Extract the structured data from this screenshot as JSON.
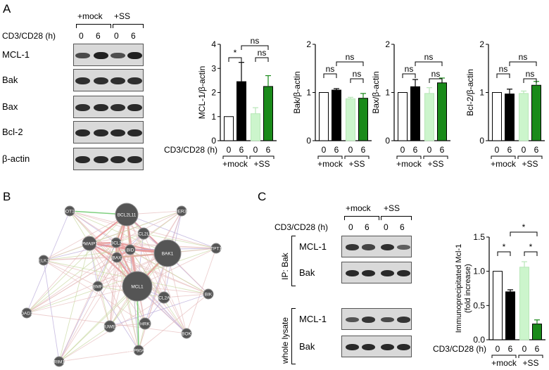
{
  "panels": {
    "a": "A",
    "b": "B",
    "c": "C"
  },
  "panel_a": {
    "groups": [
      "+mock",
      "+SS"
    ],
    "time_label": "CD3/CD28 (h)",
    "times": [
      "0",
      "6",
      "0",
      "6"
    ],
    "blots": [
      {
        "name": "MCL-1",
        "intensity": [
          0.55,
          0.95,
          0.5,
          0.95
        ]
      },
      {
        "name": "Bak",
        "intensity": [
          0.8,
          0.8,
          0.8,
          0.8
        ]
      },
      {
        "name": "Bax",
        "intensity": [
          0.8,
          0.85,
          0.8,
          0.85
        ]
      },
      {
        "name": "Bcl-2",
        "intensity": [
          0.85,
          0.85,
          0.85,
          0.85
        ]
      },
      {
        "name": "β-actin",
        "intensity": [
          0.85,
          0.85,
          0.85,
          0.85
        ]
      }
    ]
  },
  "panel_b": {
    "nodes": [
      {
        "label": "BOT1L"
      },
      {
        "label": "BCL2L11"
      },
      {
        "label": "IER3"
      },
      {
        "label": "BCL2L1"
      },
      {
        "label": "PMAIP1"
      },
      {
        "label": "BCL2"
      },
      {
        "label": "BID"
      },
      {
        "label": "BAX"
      },
      {
        "label": "BAK1"
      },
      {
        "label": "TPT1"
      },
      {
        "label": "ELK1"
      },
      {
        "label": "BMF"
      },
      {
        "label": "MCL1"
      },
      {
        "label": "BCL2A1"
      },
      {
        "label": "BIK"
      },
      {
        "label": "DAD1"
      },
      {
        "label": "HUWE1"
      },
      {
        "label": "HRK"
      },
      {
        "label": "BOK"
      },
      {
        "label": "HSP90AA1"
      },
      {
        "label": "TRIM17"
      }
    ]
  },
  "panel_c": {
    "groups": [
      "+mock",
      "+SS"
    ],
    "time_label": "CD3/CD28 (h)",
    "times": [
      "0",
      "6",
      "0",
      "6"
    ],
    "ip_label": "IP: Bak",
    "lysate_label": "whole lysate",
    "ip_blots": [
      {
        "name": "MCL-1",
        "intensity": [
          0.75,
          0.6,
          0.8,
          0.35
        ]
      },
      {
        "name": "Bak",
        "intensity": [
          0.85,
          0.85,
          0.85,
          0.85
        ]
      }
    ],
    "lysate_blots": [
      {
        "name": "MCL-1",
        "intensity": [
          0.45,
          0.75,
          0.55,
          0.75
        ]
      },
      {
        "name": "Bak",
        "intensity": [
          0.85,
          0.85,
          0.85,
          0.85
        ]
      }
    ]
  },
  "chart_data": [
    {
      "type": "bar",
      "ylabel": "MCL-1/β-actin",
      "categories": [
        "0",
        "6",
        "0",
        "6"
      ],
      "groups": [
        "+mock",
        "+SS"
      ],
      "xlabel": "CD3/CD28 (h)",
      "values": [
        1.0,
        2.45,
        1.12,
        2.25
      ],
      "errors": [
        0.0,
        0.8,
        0.25,
        0.45
      ],
      "ylim": [
        0,
        4
      ],
      "yticks": [
        "0",
        "1",
        "2",
        "3",
        "4"
      ],
      "fills": [
        "#ffffff",
        "#000000",
        "#ccf5cc",
        "#1a8a1a"
      ],
      "annotations": [
        "ns",
        "*",
        "ns"
      ]
    },
    {
      "type": "bar",
      "ylabel": "Bak/β-actin",
      "categories": [
        "0",
        "6",
        "0",
        "6"
      ],
      "groups": [
        "+mock",
        "+SS"
      ],
      "xlabel": "",
      "values": [
        1.0,
        1.05,
        0.87,
        0.88
      ],
      "errors": [
        0.0,
        0.03,
        0.03,
        0.1
      ],
      "ylim": [
        0,
        2
      ],
      "yticks": [
        "0",
        "1",
        "2"
      ],
      "fills": [
        "#ffffff",
        "#000000",
        "#ccf5cc",
        "#1a8a1a"
      ],
      "annotations": [
        "ns",
        "ns",
        "ns"
      ]
    },
    {
      "type": "bar",
      "ylabel": "Bax/β-actin",
      "categories": [
        "0",
        "6",
        "0",
        "6"
      ],
      "groups": [
        "+mock",
        "+SS"
      ],
      "xlabel": "",
      "values": [
        1.0,
        1.12,
        0.98,
        1.2
      ],
      "errors": [
        0.0,
        0.15,
        0.12,
        0.1
      ],
      "ylim": [
        0,
        2
      ],
      "yticks": [
        "0",
        "1",
        "2"
      ],
      "fills": [
        "#ffffff",
        "#000000",
        "#ccf5cc",
        "#1a8a1a"
      ],
      "annotations": [
        "ns",
        "ns",
        "ns"
      ]
    },
    {
      "type": "bar",
      "ylabel": "Bcl-2/β-actin",
      "categories": [
        "0",
        "6",
        "0",
        "6"
      ],
      "groups": [
        "+mock",
        "+SS"
      ],
      "xlabel": "",
      "values": [
        1.0,
        0.97,
        0.98,
        1.15
      ],
      "errors": [
        0.0,
        0.1,
        0.05,
        0.08
      ],
      "ylim": [
        0,
        2
      ],
      "yticks": [
        "0",
        "1",
        "2"
      ],
      "fills": [
        "#ffffff",
        "#000000",
        "#ccf5cc",
        "#1a8a1a"
      ],
      "annotations": [
        "ns",
        "ns",
        "ns"
      ]
    },
    {
      "type": "bar",
      "ylabel": "Immunoprecipitated Mcl-1 (fold increase)",
      "ylabel_lines": [
        "Immunoprecipitated Mcl-1",
        "(fold increase)"
      ],
      "categories": [
        "0",
        "6",
        "0",
        "6"
      ],
      "groups": [
        "+mock",
        "+SS"
      ],
      "xlabel": "CD3/CD28 (h)",
      "values": [
        1.0,
        0.7,
        1.06,
        0.23
      ],
      "errors": [
        0.0,
        0.03,
        0.08,
        0.06
      ],
      "ylim": [
        0,
        1.5
      ],
      "yticks": [
        "0.0",
        "0.5",
        "1.0",
        "1.5"
      ],
      "fills": [
        "#ffffff",
        "#000000",
        "#ccf5cc",
        "#1a8a1a"
      ],
      "annotations": [
        "*",
        "*",
        "*"
      ]
    }
  ]
}
